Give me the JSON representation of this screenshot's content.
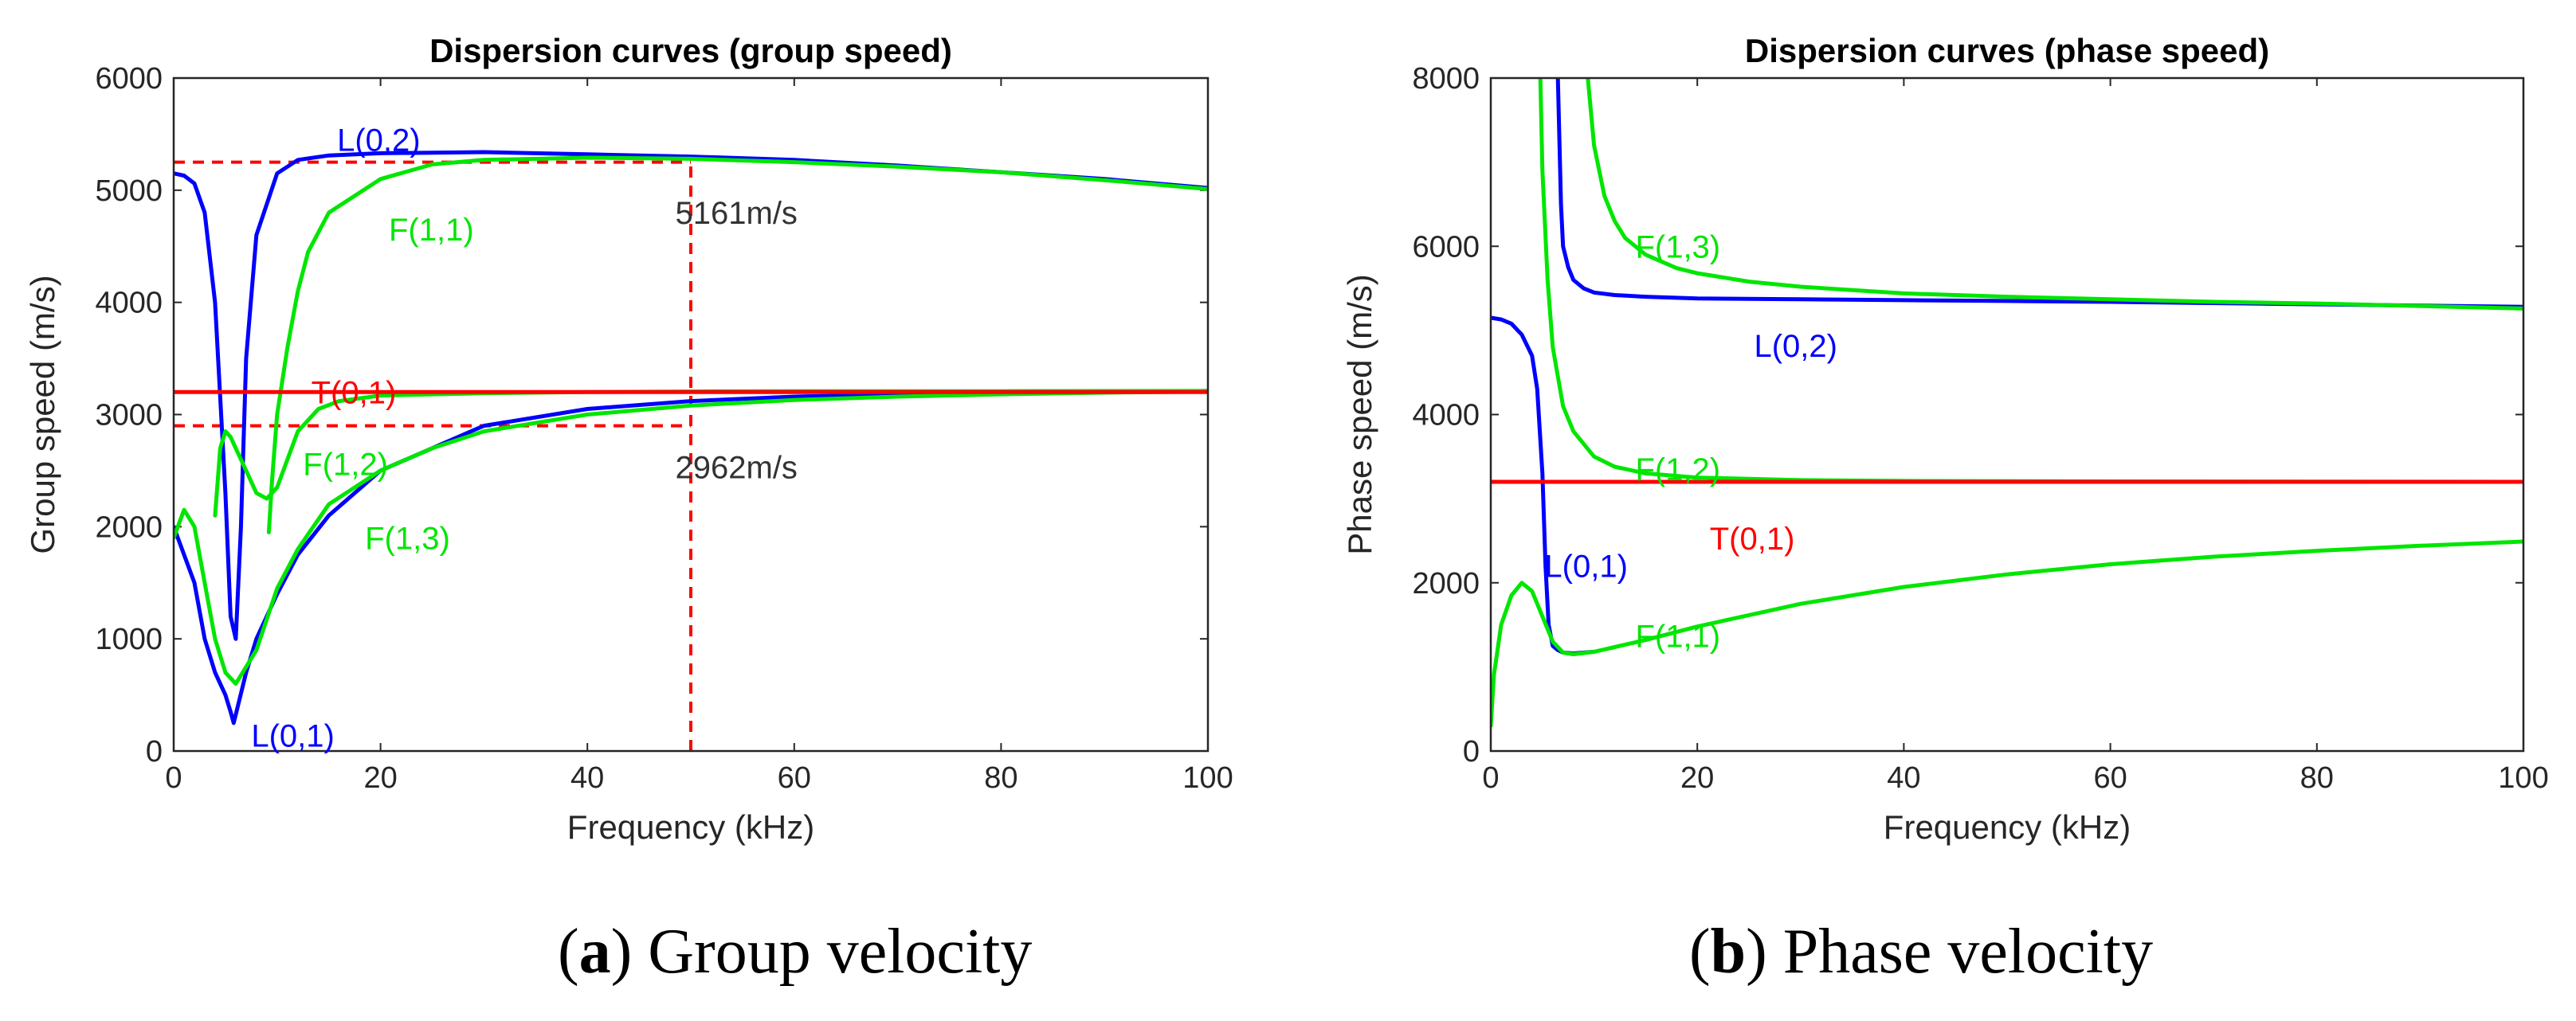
{
  "chart_data": [
    {
      "type": "line",
      "title": "Dispersion curves (group speed)",
      "xlabel": "Frequency (kHz)",
      "ylabel": "Group speed (m/s)",
      "xlim": [
        0,
        100
      ],
      "ylim": [
        0,
        6000
      ],
      "xticks": [
        0,
        20,
        40,
        60,
        80,
        100
      ],
      "yticks": [
        0,
        1000,
        2000,
        3000,
        4000,
        5000,
        6000
      ],
      "grid": false,
      "colors": {
        "L": "#0000ff",
        "F": "#00e600",
        "T": "#ff0000",
        "guide": "#ff0000",
        "note": "#333333"
      },
      "series": [
        {
          "name": "L(0,1)",
          "color": "#0000ff",
          "x": [
            0,
            2,
            3,
            4,
            5,
            5.5,
            5.8,
            6.2,
            7,
            8,
            10,
            12,
            15,
            20,
            30,
            40,
            50,
            60,
            70,
            80,
            90,
            100
          ],
          "y": [
            2000,
            1500,
            1000,
            700,
            500,
            350,
            250,
            400,
            700,
            1000,
            1400,
            1750,
            2100,
            2500,
            2900,
            3050,
            3120,
            3160,
            3180,
            3195,
            3200,
            3210
          ]
        },
        {
          "name": "L(0,2)",
          "color": "#0000ff",
          "x": [
            0,
            1,
            2,
            3,
            4,
            5,
            5.5,
            6,
            6.5,
            7,
            8,
            10,
            12,
            15,
            20,
            30,
            40,
            50,
            60,
            70,
            80,
            90,
            100
          ],
          "y": [
            5150,
            5130,
            5060,
            4800,
            4000,
            2300,
            1200,
            1000,
            2000,
            3500,
            4600,
            5150,
            5270,
            5310,
            5330,
            5340,
            5320,
            5300,
            5270,
            5220,
            5160,
            5100,
            5020
          ]
        },
        {
          "name": "F(1,1)",
          "color": "#00e600",
          "x": [
            0,
            1,
            2,
            3,
            4,
            5,
            6,
            8,
            10,
            12,
            15,
            20,
            25,
            30,
            40,
            50,
            60,
            70,
            80,
            90,
            100
          ],
          "y": [
            1900,
            2150,
            2000,
            1500,
            1000,
            700,
            600,
            900,
            1450,
            1800,
            2200,
            2500,
            2700,
            2850,
            3000,
            3080,
            3130,
            3160,
            3180,
            3195,
            3205
          ]
        },
        {
          "name": "F(1,2)",
          "color": "#00e600",
          "x": [
            4,
            4.5,
            5,
            5.5,
            6,
            7,
            8,
            9,
            10,
            11,
            12,
            14,
            16,
            20,
            30,
            40,
            50,
            60,
            80,
            100
          ],
          "y": [
            2100,
            2700,
            2850,
            2800,
            2700,
            2500,
            2300,
            2250,
            2350,
            2600,
            2850,
            3050,
            3120,
            3170,
            3190,
            3200,
            3205,
            3207,
            3208,
            3210
          ]
        },
        {
          "name": "F(1,3)",
          "color": "#00e600",
          "x": [
            9.2,
            9.5,
            10,
            11,
            12,
            13,
            15,
            20,
            25,
            30,
            40,
            50,
            60,
            70,
            80,
            90,
            100
          ],
          "y": [
            1950,
            2400,
            3000,
            3600,
            4100,
            4450,
            4800,
            5100,
            5230,
            5270,
            5290,
            5280,
            5250,
            5210,
            5160,
            5090,
            5010
          ]
        },
        {
          "name": "T(0,1)",
          "color": "#ff0000",
          "x": [
            0,
            100
          ],
          "y": [
            3200,
            3200
          ]
        }
      ],
      "guides": {
        "x": 50,
        "y_upper": 5250,
        "y_lower": 2900
      },
      "annotations": [
        {
          "text": "L(0,2)",
          "x": 15.8,
          "y": 5450,
          "color": "#0000ff"
        },
        {
          "text": "F(1,1)",
          "x": 20.8,
          "y": 4650,
          "color": "#00e600"
        },
        {
          "text": "5161m/s",
          "x": 48.5,
          "y": 4800,
          "color": "#333333"
        },
        {
          "text": "T(0,1)",
          "x": 13.3,
          "y": 3200,
          "color": "#ff0000"
        },
        {
          "text": "F(1,2)",
          "x": 12.5,
          "y": 2560,
          "color": "#00e600"
        },
        {
          "text": "2962m/s",
          "x": 48.5,
          "y": 2530,
          "color": "#333333"
        },
        {
          "text": "F(1,3)",
          "x": 18.5,
          "y": 1900,
          "color": "#00e600"
        },
        {
          "text": "L(0,1)",
          "x": 7.5,
          "y": 140,
          "color": "#0000ff"
        }
      ],
      "caption": {
        "letter": "a",
        "text": "Group velocity"
      }
    },
    {
      "type": "line",
      "title": "Dispersion curves (phase speed)",
      "xlabel": "Frequency (kHz)",
      "ylabel": "Phase speed (m/s)",
      "xlim": [
        0,
        100
      ],
      "ylim": [
        0,
        8000
      ],
      "xticks": [
        0,
        20,
        40,
        60,
        80,
        100
      ],
      "yticks": [
        0,
        2000,
        4000,
        6000,
        8000
      ],
      "grid": false,
      "colors": {
        "L": "#0000ff",
        "F": "#00e600",
        "T": "#ff0000"
      },
      "series": [
        {
          "name": "L(0,1)",
          "color": "#0000ff",
          "x": [
            0,
            1,
            2,
            3,
            4,
            4.5,
            5,
            5.3,
            5.6,
            6,
            6.5,
            7,
            8,
            10
          ],
          "y": [
            5150,
            5130,
            5080,
            4950,
            4700,
            4300,
            3300,
            2200,
            1500,
            1250,
            1200,
            1170,
            1160,
            1180
          ]
        },
        {
          "name": "L(0,2)",
          "color": "#0000ff",
          "x": [
            6.5,
            6.8,
            7,
            7.5,
            8,
            9,
            10,
            12,
            15,
            20,
            30,
            40,
            50,
            60,
            80,
            100
          ],
          "y": [
            8000,
            6500,
            6000,
            5750,
            5600,
            5500,
            5450,
            5420,
            5400,
            5380,
            5370,
            5360,
            5350,
            5340,
            5310,
            5280
          ]
        },
        {
          "name": "F(1,1)",
          "color": "#00e600",
          "x": [
            0,
            0.3,
            1,
            2,
            3,
            4,
            5,
            6,
            7,
            8,
            10,
            15,
            20,
            30,
            40,
            50,
            60,
            70,
            80,
            90,
            100
          ],
          "y": [
            300,
            900,
            1500,
            1850,
            2000,
            1900,
            1600,
            1300,
            1170,
            1150,
            1180,
            1320,
            1480,
            1750,
            1950,
            2100,
            2220,
            2310,
            2380,
            2440,
            2490
          ]
        },
        {
          "name": "F(1,2)",
          "color": "#00e600",
          "x": [
            4.8,
            5,
            5.5,
            6,
            7,
            8,
            10,
            12,
            15,
            20,
            30,
            40,
            60,
            80,
            100
          ],
          "y": [
            8000,
            6900,
            5600,
            4800,
            4100,
            3800,
            3500,
            3380,
            3300,
            3250,
            3220,
            3210,
            3205,
            3202,
            3200
          ]
        },
        {
          "name": "F(1,3)",
          "color": "#00e600",
          "x": [
            9.4,
            10,
            11,
            12,
            13,
            15,
            18,
            20,
            25,
            30,
            40,
            50,
            60,
            70,
            80,
            100
          ],
          "y": [
            8000,
            7200,
            6600,
            6300,
            6100,
            5900,
            5740,
            5680,
            5580,
            5520,
            5440,
            5400,
            5370,
            5340,
            5320,
            5260
          ]
        },
        {
          "name": "T(0,1)",
          "color": "#ff0000",
          "x": [
            0,
            100
          ],
          "y": [
            3200,
            3200
          ]
        }
      ],
      "annotations": [
        {
          "text": "F(1,3)",
          "x": 14,
          "y": 6000,
          "color": "#00e600"
        },
        {
          "text": "L(0,2)",
          "x": 25.5,
          "y": 4820,
          "color": "#0000ff"
        },
        {
          "text": "F(1,2)",
          "x": 14,
          "y": 3350,
          "color": "#00e600"
        },
        {
          "text": "T(0,1)",
          "x": 21.2,
          "y": 2530,
          "color": "#ff0000"
        },
        {
          "text": "L(0,1)",
          "x": 5.2,
          "y": 2200,
          "color": "#0000ff"
        },
        {
          "text": "F(1,1)",
          "x": 14,
          "y": 1370,
          "color": "#00e600"
        }
      ],
      "caption": {
        "letter": "b",
        "text": "Phase velocity"
      }
    }
  ]
}
